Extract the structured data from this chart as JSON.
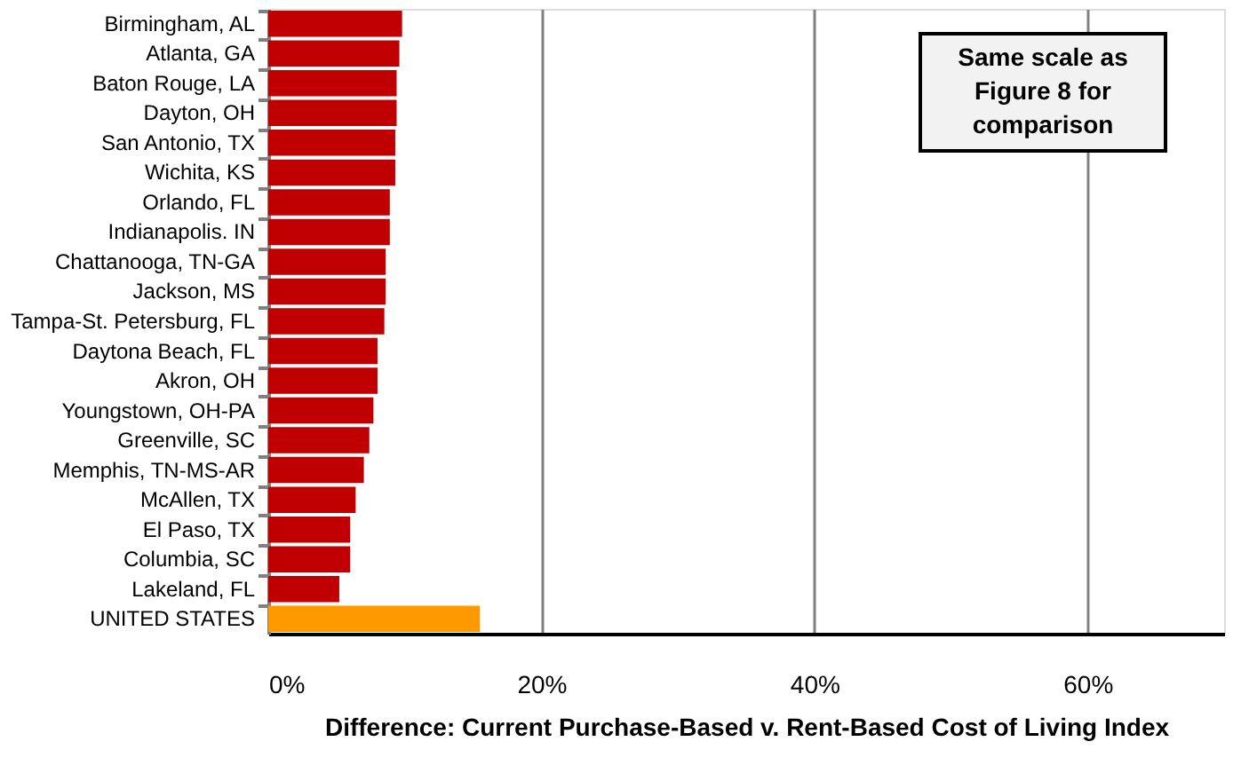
{
  "chart_data": {
    "type": "bar",
    "orientation": "horizontal",
    "xlabel": "Difference: Current Purchase-Based v. Rent-Based Cost of Living Index",
    "categories": [
      "Birmingham, AL",
      "Atlanta, GA",
      "Baton Rouge, LA",
      "Dayton, OH",
      "San Antonio, TX",
      "Wichita, KS",
      "Orlando, FL",
      "Indianapolis. IN",
      "Chattanooga, TN-GA",
      "Jackson, MS",
      "Tampa-St. Petersburg, FL",
      "Daytona Beach, FL",
      "Akron, OH",
      "Youngstown, OH-PA",
      "Greenville, SC",
      "Memphis, TN-MS-AR",
      "McAllen, TX",
      "El Paso, TX",
      "Columbia, SC",
      "Lakeland, FL",
      "UNITED STATES"
    ],
    "values": [
      9.8,
      9.6,
      9.4,
      9.4,
      9.3,
      9.3,
      8.9,
      8.9,
      8.6,
      8.6,
      8.5,
      8.0,
      8.0,
      7.7,
      7.4,
      7.0,
      6.4,
      6.0,
      6.0,
      5.2,
      15.5
    ],
    "colors": [
      "#c00000",
      "#c00000",
      "#c00000",
      "#c00000",
      "#c00000",
      "#c00000",
      "#c00000",
      "#c00000",
      "#c00000",
      "#c00000",
      "#c00000",
      "#c00000",
      "#c00000",
      "#c00000",
      "#c00000",
      "#c00000",
      "#c00000",
      "#c00000",
      "#c00000",
      "#c00000",
      "#ff9900"
    ],
    "xlim": [
      0,
      70
    ],
    "xticks": [
      {
        "value": 0,
        "label": "0%"
      },
      {
        "value": 20,
        "label": "20%"
      },
      {
        "value": 40,
        "label": "40%"
      },
      {
        "value": 60,
        "label": "60%"
      }
    ],
    "grid": "x",
    "legend": false,
    "annotations": [
      "Same scale as\nFigure 8 for\ncomparison"
    ]
  }
}
